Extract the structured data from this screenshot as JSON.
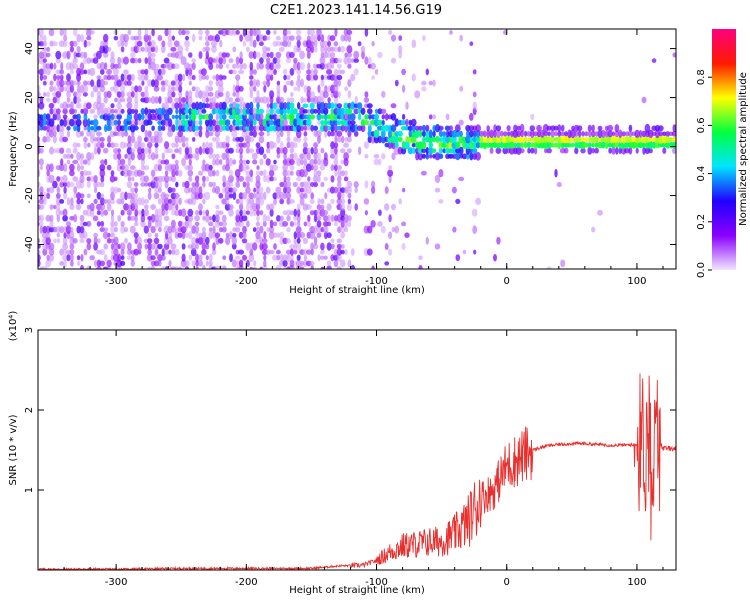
{
  "figure": {
    "title": "C2E1.2023.141.14.56.G19"
  },
  "chart_data": [
    {
      "type": "heatmap",
      "xlabel": "Height of straight line (km)",
      "ylabel": "Frequency (Hz)",
      "xlim": [
        -360,
        130
      ],
      "ylim": [
        -50,
        48
      ],
      "xticks": [
        -300,
        -200,
        -100,
        0,
        100
      ],
      "yticks": [
        -40,
        -20,
        0,
        20,
        40
      ],
      "grid": false,
      "colorbar": {
        "label": "Normalized spectral amplitude",
        "range": [
          0,
          1
        ],
        "ticks": [
          0.0,
          0.2,
          0.4,
          0.6,
          0.8
        ],
        "colors": [
          "#f2e6ff",
          "#8a00ff",
          "#2000ff",
          "#00e5ff",
          "#00ff40",
          "#ffff00",
          "#ff1a00",
          "#ff0080"
        ]
      },
      "ridge": {
        "x": [
          -360,
          -300,
          -250,
          -200,
          -150,
          -120,
          -100,
          -80,
          -60,
          -40,
          -20,
          0,
          50,
          100,
          130
        ],
        "y": [
          10,
          10,
          12,
          12,
          12,
          12,
          9,
          4,
          2,
          1,
          2,
          2,
          2,
          2,
          2
        ]
      }
    },
    {
      "type": "line",
      "xlabel": "Height of straight line (km)",
      "ylabel": "SNR (10 * v/v)",
      "y_multiplier": "(x10⁴)",
      "xlim": [
        -360,
        130
      ],
      "ylim": [
        0,
        3
      ],
      "xticks": [
        -300,
        -200,
        -100,
        0,
        100
      ],
      "yticks": [
        1,
        2,
        3
      ],
      "grid": false,
      "series": [
        {
          "color": "#e8302e",
          "x": [
            -360,
            -300,
            -250,
            -200,
            -150,
            -130,
            -110,
            -100,
            -90,
            -80,
            -70,
            -60,
            -50,
            -40,
            -30,
            -25,
            -20,
            -15,
            -10,
            -5,
            0,
            10,
            20,
            30,
            40,
            50,
            60,
            70,
            80,
            90,
            100,
            105,
            108,
            110,
            112,
            115,
            120,
            130
          ],
          "y": [
            0.01,
            0.01,
            0.02,
            0.02,
            0.02,
            0.05,
            0.06,
            0.12,
            0.22,
            0.3,
            0.32,
            0.35,
            0.36,
            0.45,
            0.6,
            0.75,
            0.9,
            0.95,
            1.0,
            1.15,
            1.3,
            1.4,
            1.5,
            1.55,
            1.57,
            1.58,
            1.58,
            1.57,
            1.56,
            1.56,
            1.57,
            1.65,
            1.45,
            1.9,
            1.2,
            1.7,
            1.52,
            1.52
          ]
        }
      ]
    }
  ]
}
